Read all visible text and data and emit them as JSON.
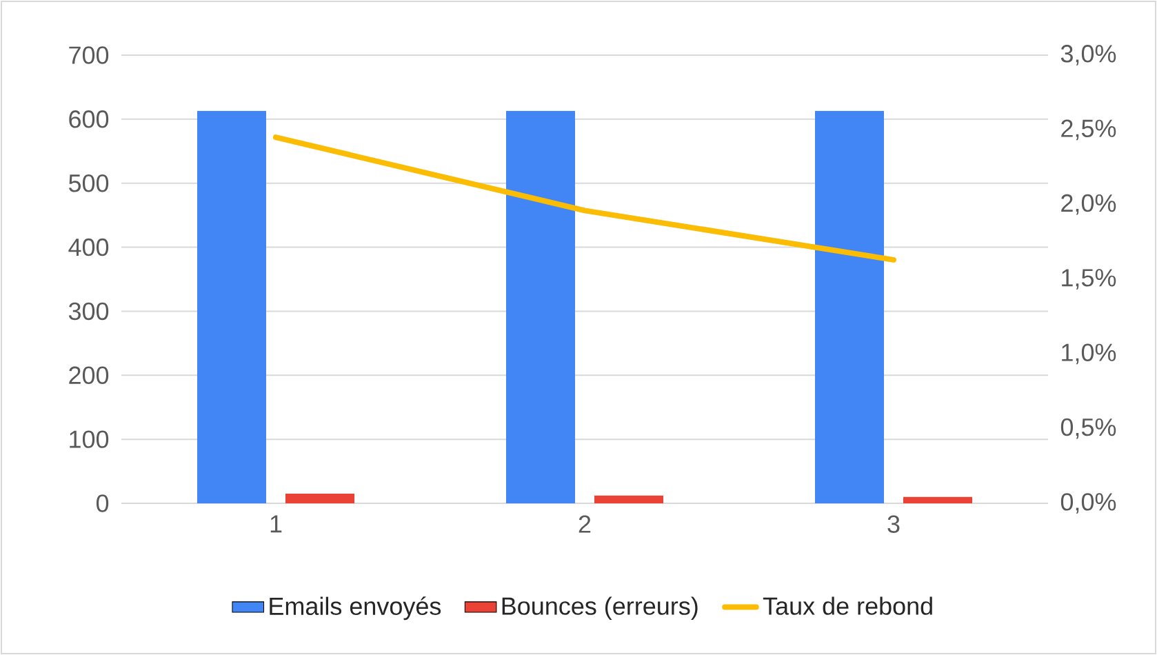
{
  "chart_data": {
    "type": "bar",
    "categories": [
      "1",
      "2",
      "3"
    ],
    "series": [
      {
        "name": "Emails envoyés",
        "color": "#4285f4",
        "values": [
          613,
          613,
          613
        ]
      },
      {
        "name": "Bounces (erreurs)",
        "color": "#ea4335",
        "values": [
          15,
          12,
          10
        ]
      },
      {
        "name": "Taux de rebond",
        "type": "line",
        "axis": "y2",
        "color": "#fbbc04",
        "values": [
          2.45,
          1.96,
          1.63
        ]
      }
    ],
    "ylim": [
      0,
      700
    ],
    "yticks": [
      0,
      100,
      200,
      300,
      400,
      500,
      600,
      700
    ],
    "y2lim": [
      0,
      3
    ],
    "y2ticks": [
      {
        "value": 0,
        "label": "0,0%"
      },
      {
        "value": 0.5,
        "label": "0,5%"
      },
      {
        "value": 1,
        "label": "1,0%"
      },
      {
        "value": 1.5,
        "label": "1,5%"
      },
      {
        "value": 2,
        "label": "2,0%"
      },
      {
        "value": 2.5,
        "label": "2,5%"
      },
      {
        "value": 3,
        "label": "3,0%"
      }
    ],
    "grid": "y",
    "legend": "bottom",
    "marker": "none"
  }
}
